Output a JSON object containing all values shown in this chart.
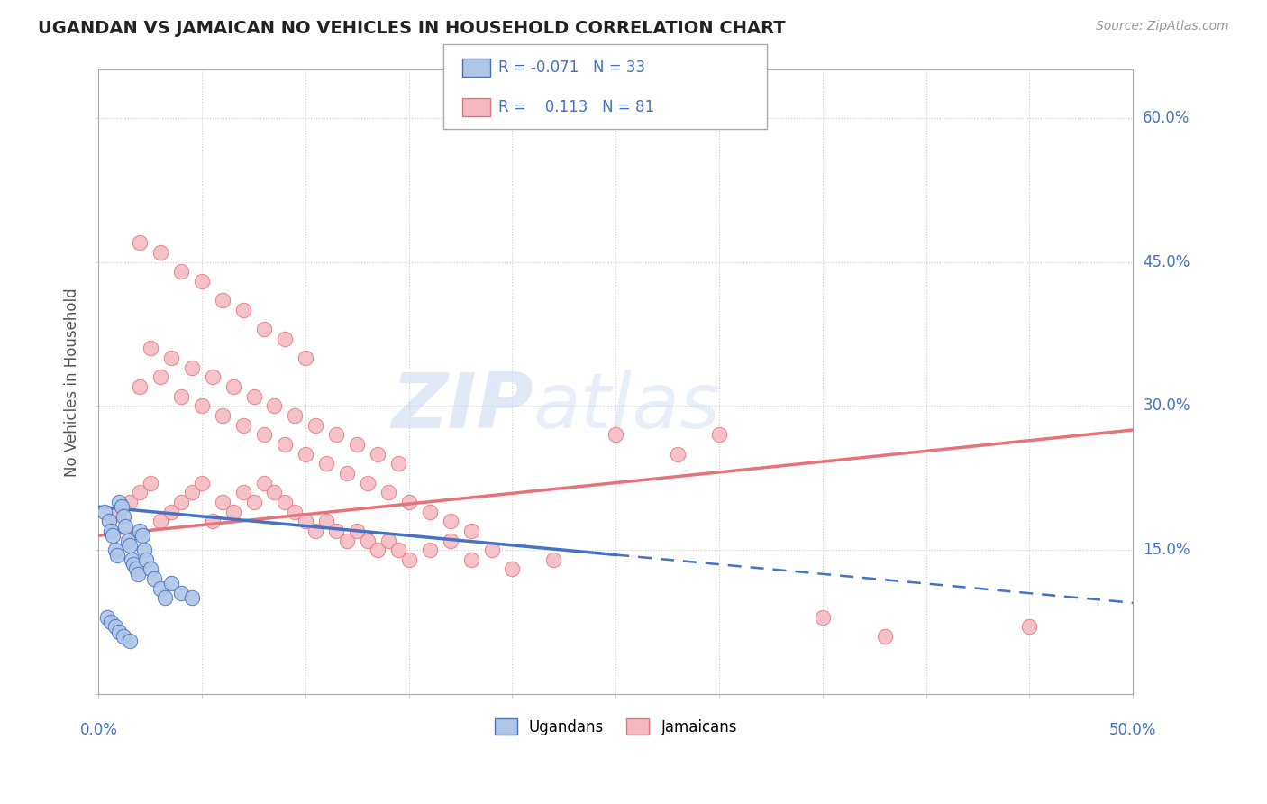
{
  "title": "UGANDAN VS JAMAICAN NO VEHICLES IN HOUSEHOLD CORRELATION CHART",
  "source": "Source: ZipAtlas.com",
  "ylabel": "No Vehicles in Household",
  "ugandan_color": "#aec6e8",
  "jamaican_color": "#f4b8c1",
  "ugandan_line_color": "#4472c4",
  "jamaican_line_color": "#e8727a",
  "watermark_zip": "ZIP",
  "watermark_atlas": "atlas",
  "legend_ug_r": "-0.071",
  "legend_ug_n": "33",
  "legend_jm_r": "0.113",
  "legend_jm_n": "81",
  "ugandans_x": [
    0.3,
    0.5,
    0.6,
    0.7,
    0.8,
    0.9,
    1.0,
    1.1,
    1.2,
    1.3,
    1.4,
    1.5,
    1.6,
    1.7,
    1.8,
    1.9,
    2.0,
    2.1,
    2.2,
    2.3,
    2.5,
    2.7,
    3.0,
    3.2,
    3.5,
    4.0,
    4.5,
    0.4,
    0.6,
    0.8,
    1.0,
    1.2,
    1.5
  ],
  "ugandans_y": [
    19.0,
    18.0,
    17.0,
    16.5,
    15.0,
    14.5,
    20.0,
    19.5,
    18.5,
    17.5,
    16.0,
    15.5,
    14.0,
    13.5,
    13.0,
    12.5,
    17.0,
    16.5,
    15.0,
    14.0,
    13.0,
    12.0,
    11.0,
    10.0,
    11.5,
    10.5,
    10.0,
    8.0,
    7.5,
    7.0,
    6.5,
    6.0,
    5.5
  ],
  "jamaicans_x": [
    0.5,
    1.0,
    1.5,
    2.0,
    2.5,
    3.0,
    3.5,
    4.0,
    4.5,
    5.0,
    5.5,
    6.0,
    6.5,
    7.0,
    7.5,
    8.0,
    8.5,
    9.0,
    9.5,
    10.0,
    10.5,
    11.0,
    11.5,
    12.0,
    12.5,
    13.0,
    13.5,
    14.0,
    14.5,
    15.0,
    16.0,
    17.0,
    18.0,
    19.0,
    20.0,
    22.0,
    25.0,
    28.0,
    30.0,
    35.0,
    38.0,
    45.0,
    2.0,
    3.0,
    4.0,
    5.0,
    6.0,
    7.0,
    8.0,
    9.0,
    10.0,
    11.0,
    12.0,
    13.0,
    14.0,
    15.0,
    16.0,
    17.0,
    18.0,
    2.5,
    3.5,
    4.5,
    5.5,
    6.5,
    7.5,
    8.5,
    9.5,
    10.5,
    11.5,
    12.5,
    13.5,
    14.5,
    2.0,
    3.0,
    4.0,
    5.0,
    6.0,
    7.0,
    8.0,
    9.0,
    10.0
  ],
  "jamaicans_y": [
    18.0,
    19.0,
    20.0,
    21.0,
    22.0,
    18.0,
    19.0,
    20.0,
    21.0,
    22.0,
    18.0,
    20.0,
    19.0,
    21.0,
    20.0,
    22.0,
    21.0,
    20.0,
    19.0,
    18.0,
    17.0,
    18.0,
    17.0,
    16.0,
    17.0,
    16.0,
    15.0,
    16.0,
    15.0,
    14.0,
    15.0,
    16.0,
    14.0,
    15.0,
    13.0,
    14.0,
    27.0,
    25.0,
    27.0,
    8.0,
    6.0,
    7.0,
    32.0,
    33.0,
    31.0,
    30.0,
    29.0,
    28.0,
    27.0,
    26.0,
    25.0,
    24.0,
    23.0,
    22.0,
    21.0,
    20.0,
    19.0,
    18.0,
    17.0,
    36.0,
    35.0,
    34.0,
    33.0,
    32.0,
    31.0,
    30.0,
    29.0,
    28.0,
    27.0,
    26.0,
    25.0,
    24.0,
    47.0,
    46.0,
    44.0,
    43.0,
    41.0,
    40.0,
    38.0,
    37.0,
    35.0
  ]
}
